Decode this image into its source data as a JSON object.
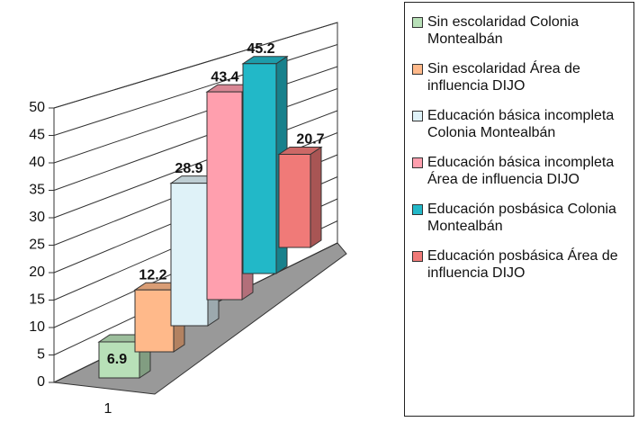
{
  "chart_data": {
    "type": "bar3d",
    "categories": [
      "1"
    ],
    "series": [
      {
        "name": "Sin escolaridad Colonia Montealbán",
        "color": "#b8e0b8",
        "values": [
          6.9
        ]
      },
      {
        "name": "Sin escolaridad Área de influencia DIJO",
        "color": "#ffb98a",
        "values": [
          12.2
        ]
      },
      {
        "name": "Educación básica incompleta Colonia Montealbán",
        "color": "#dff2f8",
        "values": [
          28.9
        ]
      },
      {
        "name": "Educación básica incompleta Área de influencia DIJO",
        "color": "#ff9fae",
        "values": [
          43.4
        ]
      },
      {
        "name": "Educación posbásica Colonia Montealbán",
        "color": "#22b8c8",
        "values": [
          45.2
        ]
      },
      {
        "name": "Educación posbásica Área de influencia DIJO",
        "color": "#f07a78",
        "values": [
          20.7
        ]
      }
    ],
    "ylim": [
      0,
      50
    ],
    "yticks": [
      0,
      5,
      10,
      15,
      20,
      25,
      30,
      35,
      40,
      45,
      50
    ],
    "grid": true,
    "legend": "right"
  }
}
